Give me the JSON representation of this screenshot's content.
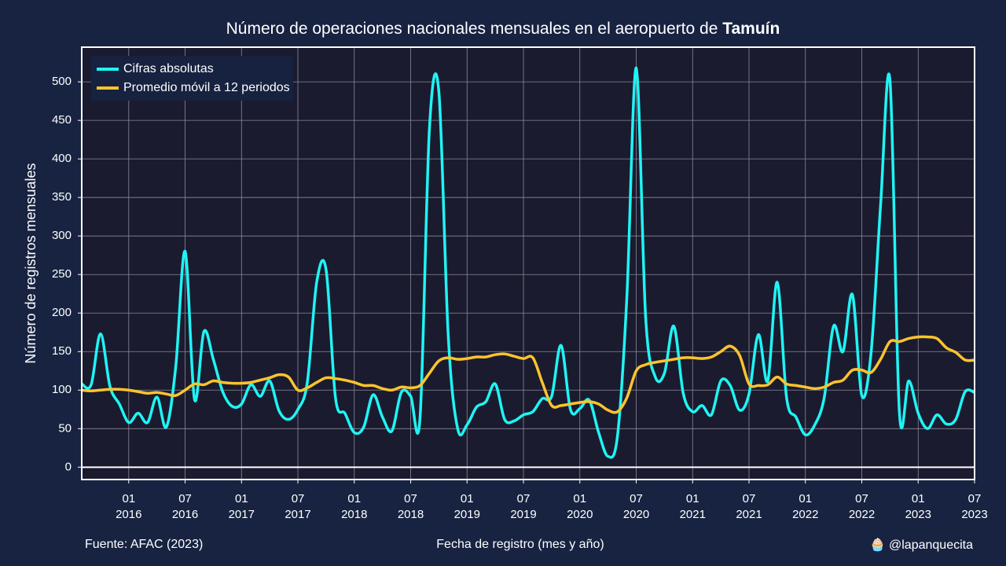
{
  "chart_data": {
    "type": "line",
    "title": "Número de operaciones nacionales mensuales en el aeropuerto de",
    "title_highlight": "Tamuín",
    "y_label": "Número de registros mensuales",
    "x_label": "Fecha de registro (mes y año)",
    "source": "Fuente: AFAC (2023)",
    "credit": "🧁 @lapanquecita",
    "legend": "upper left",
    "grid": true,
    "x": [
      "2015-08",
      "2015-09",
      "2015-10",
      "2015-11",
      "2015-12",
      "2016-01",
      "2016-02",
      "2016-03",
      "2016-04",
      "2016-05",
      "2016-06",
      "2016-07",
      "2016-08",
      "2016-09",
      "2016-10",
      "2016-11",
      "2016-12",
      "2017-01",
      "2017-02",
      "2017-03",
      "2017-04",
      "2017-05",
      "2017-06",
      "2017-07",
      "2017-08",
      "2017-09",
      "2017-10",
      "2017-11",
      "2017-12",
      "2018-01",
      "2018-02",
      "2018-03",
      "2018-04",
      "2018-05",
      "2018-06",
      "2018-07",
      "2018-08",
      "2018-09",
      "2018-10",
      "2018-11",
      "2018-12",
      "2019-01",
      "2019-02",
      "2019-03",
      "2019-04",
      "2019-05",
      "2019-06",
      "2019-07",
      "2019-08",
      "2019-09",
      "2019-10",
      "2019-11",
      "2019-12",
      "2020-01",
      "2020-02",
      "2020-03",
      "2020-04",
      "2020-05",
      "2020-06",
      "2020-07",
      "2020-08",
      "2020-09",
      "2020-10",
      "2020-11",
      "2020-12",
      "2021-01",
      "2021-02",
      "2021-03",
      "2021-04",
      "2021-05",
      "2021-06",
      "2021-07",
      "2021-08",
      "2021-09",
      "2021-10",
      "2021-11",
      "2021-12",
      "2022-01",
      "2022-02",
      "2022-03",
      "2022-04",
      "2022-05",
      "2022-06",
      "2022-07",
      "2022-08",
      "2022-09",
      "2022-10",
      "2022-11",
      "2022-12",
      "2023-01",
      "2023-02",
      "2023-03",
      "2023-04",
      "2023-05",
      "2023-06",
      "2023-07"
    ],
    "series": [
      {
        "name": "Cifras absolutas",
        "color": "#1ff4f4",
        "values": [
          108,
          107,
          173,
          105,
          82,
          58,
          70,
          58,
          91,
          52,
          130,
          280,
          88,
          176,
          140,
          98,
          79,
          82,
          107,
          92,
          112,
          73,
          62,
          75,
          110,
          240,
          256,
          90,
          70,
          45,
          52,
          94,
          65,
          47,
          97,
          92,
          65,
          440,
          487,
          170,
          50,
          55,
          78,
          85,
          108,
          62,
          60,
          68,
          72,
          89,
          92,
          158,
          75,
          76,
          87,
          45,
          14,
          40,
          220,
          518,
          195,
          118,
          122,
          183,
          96,
          72,
          80,
          68,
          112,
          106,
          74,
          95,
          172,
          112,
          240,
          90,
          65,
          42,
          55,
          90,
          183,
          150,
          224,
          93,
          150,
          340,
          502,
          72,
          112,
          70,
          50,
          68,
          56,
          62,
          98,
          97
        ]
      },
      {
        "name": "Promedio móvil a 12 periodos",
        "color": "#fcc42c",
        "values": [
          100,
          99,
          100,
          101,
          101,
          100,
          98,
          96,
          97,
          95,
          93,
          100,
          108,
          107,
          112,
          110,
          109,
          109,
          110,
          113,
          116,
          120,
          117,
          100,
          103,
          110,
          116,
          115,
          113,
          110,
          106,
          106,
          102,
          100,
          104,
          103,
          106,
          122,
          138,
          142,
          140,
          141,
          143,
          143,
          146,
          147,
          144,
          141,
          142,
          110,
          80,
          80,
          82,
          84,
          85,
          82,
          74,
          72,
          90,
          125,
          133,
          136,
          138,
          140,
          142,
          142,
          141,
          143,
          150,
          157,
          145,
          108,
          106,
          107,
          117,
          108,
          106,
          104,
          102,
          104,
          110,
          113,
          126,
          126,
          123,
          140,
          163,
          163,
          167,
          169,
          169,
          167,
          155,
          149,
          139,
          139
        ]
      }
    ],
    "xlim": [
      "2015-08",
      "2023-07"
    ],
    "xticks": [
      {
        "value": "2016-01",
        "label": "01\n2016"
      },
      {
        "value": "2016-07",
        "label": "07\n2016"
      },
      {
        "value": "2017-01",
        "label": "01\n2017"
      },
      {
        "value": "2017-07",
        "label": "07\n2017"
      },
      {
        "value": "2018-01",
        "label": "01\n2018"
      },
      {
        "value": "2018-07",
        "label": "07\n2018"
      },
      {
        "value": "2019-01",
        "label": "01\n2019"
      },
      {
        "value": "2019-07",
        "label": "07\n2019"
      },
      {
        "value": "2020-01",
        "label": "01\n2020"
      },
      {
        "value": "2020-07",
        "label": "07\n2020"
      },
      {
        "value": "2021-01",
        "label": "01\n2021"
      },
      {
        "value": "2021-07",
        "label": "07\n2021"
      },
      {
        "value": "2022-01",
        "label": "01\n2022"
      },
      {
        "value": "2022-07",
        "label": "07\n2022"
      },
      {
        "value": "2023-01",
        "label": "01\n2023"
      },
      {
        "value": "2023-07",
        "label": "07\n2023"
      }
    ],
    "ylim": [
      -16,
      545
    ],
    "yticks": [
      0,
      50,
      100,
      150,
      200,
      250,
      300,
      350,
      400,
      450,
      500
    ]
  }
}
